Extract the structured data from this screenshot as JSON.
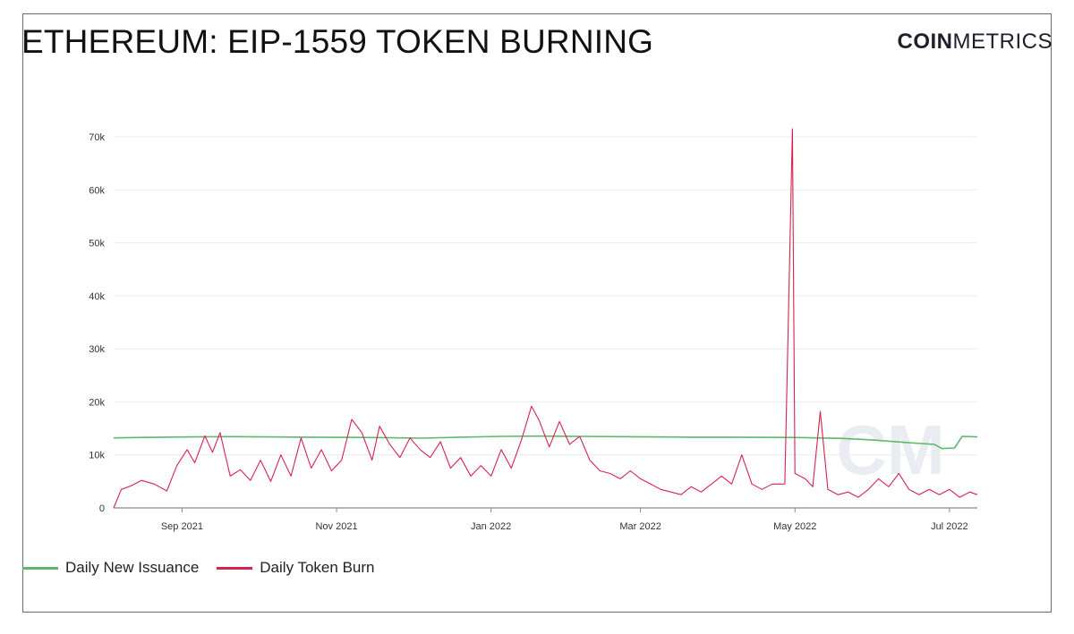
{
  "title": "ETHEREUM: EIP-1559 TOKEN BURNING",
  "brand": {
    "part1": "COIN",
    "part2": "METRICS"
  },
  "watermark": "CM",
  "colors": {
    "issuance": "#5fb86a",
    "burn": "#d6224e",
    "grid": "#ececec",
    "axis": "#8a8a8a"
  },
  "chart_data": {
    "type": "line",
    "x_start": "2021-08-05",
    "x_end": "2022-07-12",
    "x_ticks": [
      {
        "date": "2021-09-01",
        "label": "Sep 2021"
      },
      {
        "date": "2021-11-01",
        "label": "Nov 2021"
      },
      {
        "date": "2022-01-01",
        "label": "Jan 2022"
      },
      {
        "date": "2022-03-01",
        "label": "Mar 2022"
      },
      {
        "date": "2022-05-01",
        "label": "May 2022"
      },
      {
        "date": "2022-07-01",
        "label": "Jul 2022"
      }
    ],
    "y_ticks": [
      {
        "value": 0,
        "label": "0"
      },
      {
        "value": 10000,
        "label": "10k"
      },
      {
        "value": 20000,
        "label": "20k"
      },
      {
        "value": 30000,
        "label": "30k"
      },
      {
        "value": 40000,
        "label": "40k"
      },
      {
        "value": 50000,
        "label": "50k"
      },
      {
        "value": 60000,
        "label": "60k"
      },
      {
        "value": 70000,
        "label": "70k"
      }
    ],
    "ylim": [
      0,
      70000
    ],
    "grid": true,
    "legend_position": "bottom-left",
    "series": [
      {
        "name": "Daily New Issuance",
        "color": "#5fb86a",
        "points": [
          [
            "2021-08-05",
            13200
          ],
          [
            "2021-08-20",
            13300
          ],
          [
            "2021-09-05",
            13400
          ],
          [
            "2021-09-20",
            13450
          ],
          [
            "2021-10-05",
            13400
          ],
          [
            "2021-10-20",
            13350
          ],
          [
            "2021-11-05",
            13300
          ],
          [
            "2021-11-20",
            13250
          ],
          [
            "2021-12-05",
            13150
          ],
          [
            "2021-12-20",
            13350
          ],
          [
            "2022-01-05",
            13500
          ],
          [
            "2022-01-20",
            13550
          ],
          [
            "2022-02-05",
            13500
          ],
          [
            "2022-02-20",
            13450
          ],
          [
            "2022-03-05",
            13400
          ],
          [
            "2022-03-20",
            13350
          ],
          [
            "2022-04-05",
            13350
          ],
          [
            "2022-04-20",
            13300
          ],
          [
            "2022-05-05",
            13250
          ],
          [
            "2022-05-20",
            13100
          ],
          [
            "2022-06-01",
            12800
          ],
          [
            "2022-06-15",
            12300
          ],
          [
            "2022-06-25",
            12000
          ],
          [
            "2022-06-28",
            11200
          ],
          [
            "2022-07-03",
            11300
          ],
          [
            "2022-07-06",
            13500
          ],
          [
            "2022-07-12",
            13400
          ]
        ]
      },
      {
        "name": "Daily Token Burn",
        "color": "#d6224e",
        "points": [
          [
            "2021-08-05",
            0
          ],
          [
            "2021-08-08",
            3500
          ],
          [
            "2021-08-12",
            4200
          ],
          [
            "2021-08-16",
            5200
          ],
          [
            "2021-08-21",
            4500
          ],
          [
            "2021-08-26",
            3200
          ],
          [
            "2021-08-30",
            8000
          ],
          [
            "2021-09-03",
            11000
          ],
          [
            "2021-09-06",
            8500
          ],
          [
            "2021-09-10",
            13600
          ],
          [
            "2021-09-13",
            10500
          ],
          [
            "2021-09-16",
            14200
          ],
          [
            "2021-09-20",
            6000
          ],
          [
            "2021-09-24",
            7200
          ],
          [
            "2021-09-28",
            5200
          ],
          [
            "2021-10-02",
            9000
          ],
          [
            "2021-10-06",
            5000
          ],
          [
            "2021-10-10",
            10000
          ],
          [
            "2021-10-14",
            6000
          ],
          [
            "2021-10-18",
            13200
          ],
          [
            "2021-10-22",
            7500
          ],
          [
            "2021-10-26",
            11000
          ],
          [
            "2021-10-30",
            7000
          ],
          [
            "2021-11-03",
            9000
          ],
          [
            "2021-11-07",
            16700
          ],
          [
            "2021-11-11",
            14200
          ],
          [
            "2021-11-15",
            9000
          ],
          [
            "2021-11-18",
            15400
          ],
          [
            "2021-11-22",
            12000
          ],
          [
            "2021-11-26",
            9500
          ],
          [
            "2021-11-30",
            13200
          ],
          [
            "2021-12-04",
            11000
          ],
          [
            "2021-12-08",
            9500
          ],
          [
            "2021-12-12",
            12500
          ],
          [
            "2021-12-16",
            7500
          ],
          [
            "2021-12-20",
            9500
          ],
          [
            "2021-12-24",
            6000
          ],
          [
            "2021-12-28",
            8000
          ],
          [
            "2022-01-01",
            6000
          ],
          [
            "2022-01-05",
            11000
          ],
          [
            "2022-01-09",
            7500
          ],
          [
            "2022-01-13",
            12800
          ],
          [
            "2022-01-17",
            19200
          ],
          [
            "2022-01-20",
            16500
          ],
          [
            "2022-01-24",
            11500
          ],
          [
            "2022-01-28",
            16300
          ],
          [
            "2022-02-01",
            12000
          ],
          [
            "2022-02-05",
            13500
          ],
          [
            "2022-02-09",
            9000
          ],
          [
            "2022-02-13",
            7000
          ],
          [
            "2022-02-17",
            6500
          ],
          [
            "2022-02-21",
            5500
          ],
          [
            "2022-02-25",
            7000
          ],
          [
            "2022-03-01",
            5500
          ],
          [
            "2022-03-05",
            4500
          ],
          [
            "2022-03-09",
            3500
          ],
          [
            "2022-03-13",
            3000
          ],
          [
            "2022-03-17",
            2500
          ],
          [
            "2022-03-21",
            4000
          ],
          [
            "2022-03-25",
            3000
          ],
          [
            "2022-03-29",
            4500
          ],
          [
            "2022-04-02",
            6000
          ],
          [
            "2022-04-06",
            4500
          ],
          [
            "2022-04-10",
            10000
          ],
          [
            "2022-04-14",
            4500
          ],
          [
            "2022-04-18",
            3500
          ],
          [
            "2022-04-22",
            4500
          ],
          [
            "2022-04-27",
            4500
          ],
          [
            "2022-04-30",
            71500
          ],
          [
            "2022-05-01",
            6500
          ],
          [
            "2022-05-05",
            5500
          ],
          [
            "2022-05-08",
            4000
          ],
          [
            "2022-05-11",
            18200
          ],
          [
            "2022-05-14",
            3500
          ],
          [
            "2022-05-18",
            2500
          ],
          [
            "2022-05-22",
            3000
          ],
          [
            "2022-05-26",
            2000
          ],
          [
            "2022-05-30",
            3500
          ],
          [
            "2022-06-03",
            5500
          ],
          [
            "2022-06-07",
            4000
          ],
          [
            "2022-06-11",
            6500
          ],
          [
            "2022-06-15",
            3500
          ],
          [
            "2022-06-19",
            2500
          ],
          [
            "2022-06-23",
            3500
          ],
          [
            "2022-06-27",
            2500
          ],
          [
            "2022-07-01",
            3500
          ],
          [
            "2022-07-05",
            2000
          ],
          [
            "2022-07-09",
            3000
          ],
          [
            "2022-07-12",
            2500
          ]
        ]
      }
    ]
  }
}
